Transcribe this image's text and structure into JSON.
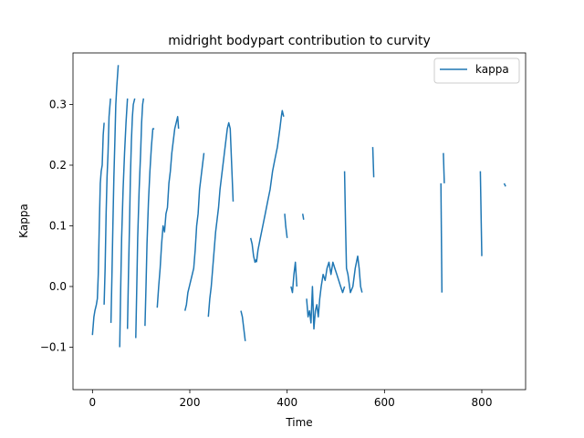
{
  "chart_data": {
    "type": "line",
    "title": "midright bodypart contribution to curvity",
    "xlabel": "Time",
    "ylabel": "Kappa",
    "xlim": [
      -40,
      890
    ],
    "ylim": [
      -0.17,
      0.385
    ],
    "xticks": [
      0,
      200,
      400,
      600,
      800
    ],
    "yticks": [
      -0.1,
      0.0,
      0.1,
      0.2,
      0.3
    ],
    "ytick_labels": [
      "−0.1",
      "0.0",
      "0.1",
      "0.2",
      "0.3"
    ],
    "grid": false,
    "legend_position": "top-right",
    "colors": {
      "kappa": "#1f77b4"
    },
    "series": [
      {
        "name": "kappa",
        "segments": [
          [
            [
              0,
              -0.08
            ],
            [
              3,
              -0.05
            ],
            [
              5,
              -0.04
            ],
            [
              8,
              -0.03
            ],
            [
              10,
              -0.02
            ],
            [
              12,
              0.02
            ],
            [
              14,
              0.1
            ],
            [
              16,
              0.17
            ],
            [
              18,
              0.19
            ],
            [
              20,
              0.2
            ],
            [
              22,
              0.25
            ],
            [
              24,
              0.27
            ]
          ],
          [
            [
              24,
              -0.03
            ],
            [
              26,
              0.03
            ],
            [
              28,
              0.12
            ],
            [
              30,
              0.18
            ],
            [
              32,
              0.22
            ],
            [
              34,
              0.28
            ],
            [
              37,
              0.31
            ]
          ],
          [
            [
              38,
              -0.06
            ],
            [
              40,
              0.02
            ],
            [
              42,
              0.1
            ],
            [
              44,
              0.18
            ],
            [
              46,
              0.24
            ],
            [
              48,
              0.3
            ],
            [
              50,
              0.33
            ],
            [
              53,
              0.365
            ]
          ],
          [
            [
              56,
              -0.1
            ],
            [
              58,
              0.0
            ],
            [
              60,
              0.08
            ],
            [
              63,
              0.16
            ],
            [
              66,
              0.22
            ],
            [
              69,
              0.27
            ],
            [
              72,
              0.31
            ]
          ],
          [
            [
              72,
              -0.07
            ],
            [
              74,
              0.02
            ],
            [
              76,
              0.1
            ],
            [
              78,
              0.18
            ],
            [
              80,
              0.24
            ],
            [
              82,
              0.28
            ],
            [
              84,
              0.3
            ],
            [
              87,
              0.31
            ]
          ],
          [
            [
              89,
              -0.085
            ],
            [
              91,
              0.0
            ],
            [
              93,
              0.08
            ],
            [
              96,
              0.16
            ],
            [
              99,
              0.22
            ],
            [
              101,
              0.27
            ],
            [
              103,
              0.3
            ],
            [
              105,
              0.31
            ]
          ],
          [
            [
              108,
              -0.065
            ],
            [
              110,
              0.0
            ],
            [
              112,
              0.07
            ],
            [
              115,
              0.14
            ],
            [
              118,
              0.19
            ],
            [
              121,
              0.23
            ],
            [
              124,
              0.26
            ],
            [
              127,
              0.26
            ]
          ],
          [
            [
              133,
              -0.035
            ],
            [
              136,
              0.0
            ],
            [
              139,
              0.03
            ],
            [
              142,
              0.07
            ],
            [
              145,
              0.1
            ],
            [
              148,
              0.09
            ],
            [
              151,
              0.12
            ],
            [
              154,
              0.13
            ],
            [
              157,
              0.17
            ],
            [
              160,
              0.19
            ],
            [
              163,
              0.22
            ],
            [
              166,
              0.24
            ],
            [
              169,
              0.26
            ],
            [
              172,
              0.27
            ],
            [
              175,
              0.28
            ],
            [
              177,
              0.26
            ]
          ],
          [
            [
              190,
              -0.04
            ],
            [
              193,
              -0.03
            ],
            [
              196,
              -0.01
            ],
            [
              199,
              0.0
            ],
            [
              202,
              0.01
            ],
            [
              205,
              0.02
            ],
            [
              208,
              0.03
            ],
            [
              211,
              0.06
            ],
            [
              214,
              0.1
            ],
            [
              217,
              0.12
            ],
            [
              220,
              0.16
            ],
            [
              223,
              0.18
            ],
            [
              226,
              0.2
            ],
            [
              229,
              0.22
            ]
          ],
          [
            [
              238,
              -0.05
            ],
            [
              241,
              -0.02
            ],
            [
              244,
              0.0
            ],
            [
              247,
              0.03
            ],
            [
              250,
              0.06
            ],
            [
              253,
              0.09
            ],
            [
              256,
              0.11
            ],
            [
              259,
              0.13
            ],
            [
              262,
              0.16
            ],
            [
              265,
              0.18
            ],
            [
              268,
              0.2
            ],
            [
              271,
              0.22
            ],
            [
              274,
              0.24
            ],
            [
              277,
              0.26
            ],
            [
              280,
              0.27
            ],
            [
              283,
              0.26
            ],
            [
              286,
              0.2
            ],
            [
              289,
              0.14
            ]
          ],
          [
            [
              305,
              -0.04
            ],
            [
              308,
              -0.05
            ],
            [
              311,
              -0.07
            ],
            [
              314,
              -0.09
            ]
          ],
          [
            [
              325,
              0.08
            ],
            [
              328,
              0.07
            ],
            [
              331,
              0.05
            ],
            [
              334,
              0.04
            ],
            [
              337,
              0.045
            ]
          ],
          [
            [
              337,
              0.04
            ],
            [
              340,
              0.06
            ],
            [
              345,
              0.08
            ],
            [
              350,
              0.1
            ],
            [
              355,
              0.12
            ],
            [
              360,
              0.14
            ],
            [
              365,
              0.16
            ],
            [
              370,
              0.19
            ],
            [
              375,
              0.21
            ],
            [
              380,
              0.23
            ],
            [
              385,
              0.26
            ],
            [
              388,
              0.28
            ],
            [
              390,
              0.29
            ],
            [
              393,
              0.28
            ]
          ],
          [
            [
              395,
              0.12
            ],
            [
              397,
              0.1
            ],
            [
              400,
              0.08
            ]
          ],
          [
            [
              408,
              0.0
            ],
            [
              411,
              -0.01
            ],
            [
              414,
              0.02
            ],
            [
              417,
              0.04
            ],
            [
              420,
              0.0
            ]
          ],
          [
            [
              432,
              0.12
            ],
            [
              434,
              0.11
            ]
          ],
          [
            [
              440,
              -0.02
            ],
            [
              443,
              -0.05
            ],
            [
              446,
              -0.04
            ],
            [
              449,
              -0.06
            ],
            [
              452,
              0.0
            ],
            [
              455,
              -0.07
            ],
            [
              458,
              -0.04
            ],
            [
              461,
              -0.03
            ],
            [
              464,
              -0.05
            ],
            [
              467,
              -0.02
            ],
            [
              470,
              0.0
            ],
            [
              474,
              0.02
            ],
            [
              478,
              0.01
            ],
            [
              482,
              0.03
            ],
            [
              486,
              0.04
            ],
            [
              490,
              0.02
            ],
            [
              494,
              0.04
            ],
            [
              498,
              0.03
            ],
            [
              502,
              0.02
            ],
            [
              506,
              0.01
            ],
            [
              510,
              0.0
            ],
            [
              514,
              -0.01
            ],
            [
              518,
              0.0
            ]
          ],
          [
            [
              518,
              0.19
            ],
            [
              520,
              0.1
            ],
            [
              522,
              0.03
            ],
            [
              525,
              0.02
            ],
            [
              530,
              -0.01
            ],
            [
              535,
              0.0
            ],
            [
              540,
              0.03
            ],
            [
              545,
              0.05
            ],
            [
              548,
              0.03
            ],
            [
              551,
              0.0
            ],
            [
              554,
              -0.01
            ]
          ],
          [
            [
              576,
              0.23
            ],
            [
              578,
              0.18
            ]
          ],
          [
            [
              716,
              0.17
            ],
            [
              718,
              -0.01
            ]
          ],
          [
            [
              721,
              0.22
            ],
            [
              723,
              0.17
            ]
          ],
          [
            [
              797,
              0.19
            ],
            [
              800,
              0.05
            ]
          ],
          [
            [
              846,
              0.17
            ],
            [
              849,
              0.165
            ]
          ]
        ]
      }
    ]
  }
}
